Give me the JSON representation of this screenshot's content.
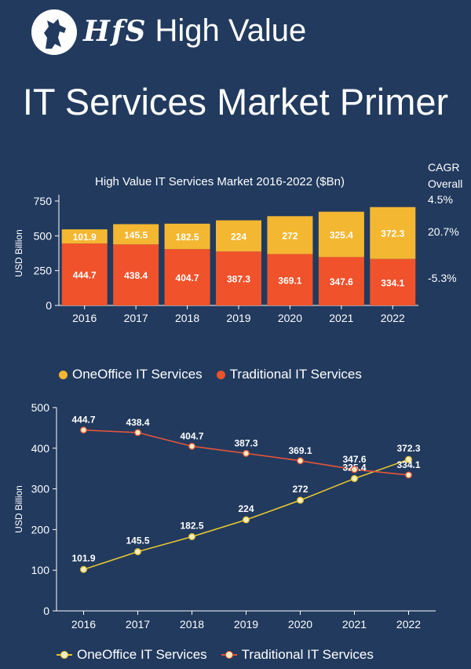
{
  "header": {
    "brand_logo_text": "HfS",
    "brand_title": "High Value",
    "page_title": "IT Services Market Primer"
  },
  "colors": {
    "background": "#213a5e",
    "oneoffice": "#f4b731",
    "traditional": "#f0522b",
    "line_oneoffice": "#e6c530",
    "line_traditional": "#e8553a"
  },
  "cagr": {
    "title_line1": "CAGR",
    "title_line2": "Overall",
    "overall": "4.5%",
    "oneoffice": "20.7%",
    "traditional": "-5.3%"
  },
  "chart_data": [
    {
      "type": "bar",
      "stacked": true,
      "title": "High Value IT Services Market 2016-2022 ($Bn)",
      "ylabel": "USD Billion",
      "xlabel": "",
      "ylim": [
        0,
        750
      ],
      "yticks": [
        0,
        250,
        500,
        750
      ],
      "categories": [
        "2016",
        "2017",
        "2018",
        "2019",
        "2020",
        "2021",
        "2022"
      ],
      "series": [
        {
          "name": "Traditional IT Services",
          "values": [
            444.7,
            438.4,
            404.7,
            387.3,
            369.1,
            347.6,
            334.1
          ]
        },
        {
          "name": "OneOffice IT Services",
          "values": [
            101.9,
            145.5,
            182.5,
            224,
            272,
            325.4,
            372.3
          ]
        }
      ],
      "legend": [
        "OneOffice IT Services",
        "Traditional IT Services"
      ],
      "legend_position": "bottom",
      "grid": false
    },
    {
      "type": "line",
      "title": "",
      "ylabel": "USD Billion",
      "xlabel": "",
      "ylim": [
        0,
        500
      ],
      "yticks": [
        0,
        100,
        200,
        300,
        400,
        500
      ],
      "categories": [
        "2016",
        "2017",
        "2018",
        "2019",
        "2020",
        "2021",
        "2022"
      ],
      "series": [
        {
          "name": "OneOffice IT Services",
          "values": [
            101.9,
            145.5,
            182.5,
            224,
            272,
            325.4,
            372.3
          ]
        },
        {
          "name": "Traditional IT Services",
          "values": [
            444.7,
            438.4,
            404.7,
            387.3,
            369.1,
            347.6,
            334.1
          ]
        }
      ],
      "legend": [
        "OneOffice IT Services",
        "Traditional IT Services"
      ],
      "legend_position": "bottom",
      "grid": false
    }
  ]
}
